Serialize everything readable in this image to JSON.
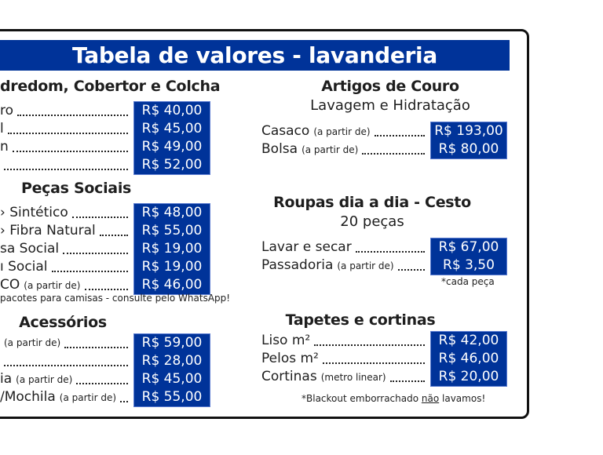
{
  "title": "Tabela de valores - lavanderia",
  "colors": {
    "accent": "#003399",
    "text": "#1e1e1e"
  },
  "edredom": {
    "heading": "dredom, Cobertor e Colcha",
    "items": [
      {
        "label": "ro",
        "note": "",
        "price": "R$ 40,00"
      },
      {
        "label": "l",
        "note": "",
        "price": "R$ 45,00"
      },
      {
        "label": "n",
        "note": "",
        "price": "R$ 49,00"
      },
      {
        "label": "",
        "note": "",
        "price": "R$ 52,00"
      }
    ]
  },
  "sociais": {
    "heading": "Peças Sociais",
    "items": [
      {
        "label": "› Sintético",
        "note": "",
        "price": "R$ 48,00"
      },
      {
        "label": "› Fibra Natural",
        "note": "",
        "price": "R$ 55,00"
      },
      {
        "label": "sa Social",
        "note": "",
        "price": "R$ 19,00"
      },
      {
        "label": "ı Social",
        "note": "",
        "price": "R$ 19,00"
      },
      {
        "label": "CO",
        "note": "(a partir de)",
        "price": "R$ 46,00"
      }
    ],
    "footnote": "pacotes para camisas - consulte pelo WhatsApp!"
  },
  "acessorios": {
    "heading": "Acessórios",
    "items": [
      {
        "label": "",
        "note": "(a partir de)",
        "price": "R$ 59,00"
      },
      {
        "label": "",
        "note": "",
        "price": "R$ 28,00"
      },
      {
        "label": "ia",
        "note": "(a partir de)",
        "price": "R$ 45,00"
      },
      {
        "label": "/Mochila",
        "note": "(a partir de)",
        "price": "R$ 55,00"
      }
    ]
  },
  "couro": {
    "heading": "Artigos de Couro",
    "subheading": "Lavagem e Hidratação",
    "items": [
      {
        "label": "Casaco",
        "note": "(a partir de)",
        "price": "R$ 193,00"
      },
      {
        "label": "Bolsa",
        "note": "(a partir de)",
        "price": "R$ 80,00"
      }
    ]
  },
  "cesto": {
    "heading": "Roupas dia a dia - Cesto",
    "subheading": "20 peças",
    "items": [
      {
        "label": "Lavar e secar",
        "note": "",
        "price": "R$ 67,00"
      },
      {
        "label": "Passadoria",
        "note": "(a partir de)",
        "price": "R$ 3,50"
      }
    ],
    "footnote": "*cada peça"
  },
  "tapetes": {
    "heading": "Tapetes e cortinas",
    "items": [
      {
        "label": "Liso m²",
        "note": "",
        "price": "R$ 42,00"
      },
      {
        "label": "Pelos m²",
        "note": "",
        "price": "R$ 46,00"
      },
      {
        "label": "Cortinas",
        "note": "(metro linear)",
        "price": "R$ 20,00"
      }
    ],
    "footnote_before": "*Blackout emborrachado ",
    "footnote_underlined": "não",
    "footnote_after": " lavamos!"
  }
}
